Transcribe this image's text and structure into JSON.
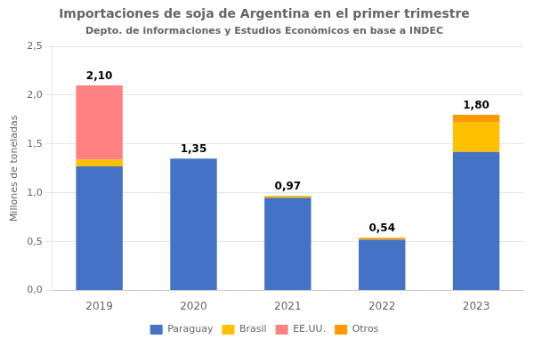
{
  "chart_data": {
    "type": "bar",
    "stacked": true,
    "title": "Importaciones de soja de Argentina en el primer trimestre",
    "subtitle": "Depto. de informaciones y Estudios Económicos en base a INDEC",
    "ylabel": "Millones de toneladas",
    "categories": [
      "2019",
      "2020",
      "2021",
      "2022",
      "2023"
    ],
    "series": [
      {
        "name": "Paraguay",
        "color": "#4472C4",
        "values": [
          1.27,
          1.35,
          0.95,
          0.52,
          1.42
        ]
      },
      {
        "name": "Brasil",
        "color": "#FFC000",
        "values": [
          0.07,
          0.0,
          0.02,
          0.0,
          0.3
        ]
      },
      {
        "name": "EE.UU.",
        "color": "#FF8080",
        "values": [
          0.76,
          0.0,
          0.0,
          0.0,
          0.0
        ]
      },
      {
        "name": "Otros",
        "color": "#FF9900",
        "values": [
          0.0,
          0.0,
          0.0,
          0.02,
          0.08
        ]
      }
    ],
    "totals": [
      2.1,
      1.35,
      0.97,
      0.54,
      1.8
    ],
    "total_labels": [
      "2,10",
      "1,35",
      "0,97",
      "0,54",
      "1,80"
    ],
    "ylim": [
      0,
      2.5
    ],
    "yticks": [
      {
        "value": 0.0,
        "label": "0,0"
      },
      {
        "value": 0.5,
        "label": "0,5"
      },
      {
        "value": 1.0,
        "label": "1,0"
      },
      {
        "value": 1.5,
        "label": "1,5"
      },
      {
        "value": 2.0,
        "label": "2,0"
      },
      {
        "value": 2.5,
        "label": "2,5"
      }
    ],
    "grid": true,
    "legend": "bottom"
  }
}
